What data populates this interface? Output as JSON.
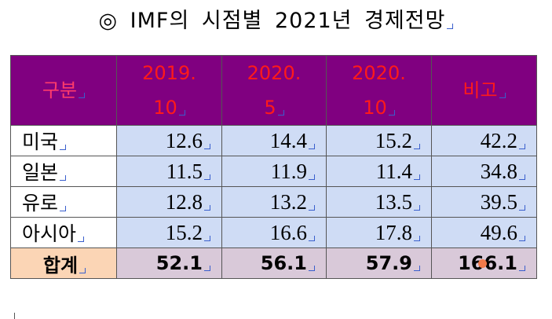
{
  "title": "◎ IMF의 시점별 2021년 경제전망",
  "table": {
    "header": [
      [
        "구분"
      ],
      [
        "2019.",
        "10"
      ],
      [
        "2020.",
        "5"
      ],
      [
        "2020.",
        "10"
      ],
      [
        "비고"
      ]
    ],
    "rows": [
      [
        "미국",
        12.6,
        14.4,
        15.2,
        42.2
      ],
      [
        "일본",
        11.5,
        11.9,
        11.4,
        34.8
      ],
      [
        "유로",
        12.8,
        13.2,
        13.5,
        39.5
      ],
      [
        "아시아",
        15.2,
        16.6,
        17.8,
        49.6
      ]
    ],
    "total": [
      "합계",
      52.1,
      56.1,
      57.9,
      166.1
    ]
  }
}
